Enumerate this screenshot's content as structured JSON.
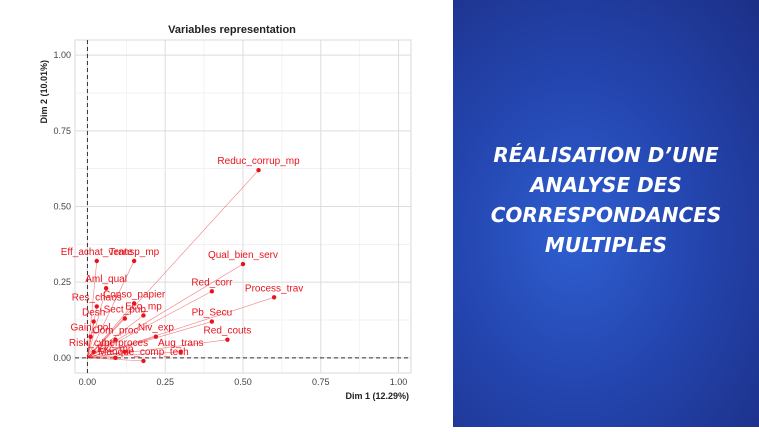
{
  "chart_data": {
    "type": "scatter",
    "title": "Variables representation",
    "xlabel": "Dim 1 (12.29%)",
    "ylabel": "Dim 2 (10.01%)",
    "xlim": [
      -0.04,
      1.04
    ],
    "ylim": [
      -0.05,
      1.05
    ],
    "x_ticks": [
      "0.00",
      "0.25",
      "0.50",
      "0.75",
      "1.00"
    ],
    "y_ticks": [
      "0.00",
      "0.25",
      "0.50",
      "0.75",
      "1.00"
    ],
    "grid": true,
    "reference_lines": "dashed lines at x=0 and y=0",
    "point_color": "#e8141c",
    "points": [
      {
        "label": "Reduc_corrup_mp",
        "x": 0.55,
        "y": 0.62
      },
      {
        "label": "Eff_achat_vente",
        "x": 0.03,
        "y": 0.32
      },
      {
        "label": "Transp_mp",
        "x": 0.15,
        "y": 0.32
      },
      {
        "label": "Qual_bien_serv",
        "x": 0.5,
        "y": 0.31
      },
      {
        "label": "Aml_qual",
        "x": 0.06,
        "y": 0.23
      },
      {
        "label": "Red_corr",
        "x": 0.4,
        "y": 0.22
      },
      {
        "label": "Res_chaos",
        "x": 0.03,
        "y": 0.17
      },
      {
        "label": "Conso_papier",
        "x": 0.15,
        "y": 0.18
      },
      {
        "label": "Process_trav",
        "x": 0.6,
        "y": 0.2
      },
      {
        "label": "Eco_mp",
        "x": 0.18,
        "y": 0.14
      },
      {
        "label": "Desh",
        "x": 0.02,
        "y": 0.12
      },
      {
        "label": "Sect_pub",
        "x": 0.12,
        "y": 0.13
      },
      {
        "label": "Pb_Secu",
        "x": 0.4,
        "y": 0.12
      },
      {
        "label": "Niv_exp",
        "x": 0.22,
        "y": 0.07
      },
      {
        "label": "Gain_pol",
        "x": 0.01,
        "y": 0.07
      },
      {
        "label": "Com_proc",
        "x": 0.09,
        "y": 0.06
      },
      {
        "label": "Red_couts",
        "x": 0.45,
        "y": 0.06
      },
      {
        "label": "Risk_cyber",
        "x": 0.02,
        "y": 0.02
      },
      {
        "label": "Int_proces",
        "x": 0.12,
        "y": 0.02
      },
      {
        "label": "Aug_trans",
        "x": 0.3,
        "y": 0.02
      },
      {
        "label": "Exc_mp",
        "x": 0.09,
        "y": 0.0
      },
      {
        "label": "Manque_comp_tech",
        "x": 0.18,
        "y": -0.01
      }
    ]
  },
  "headline": [
    "Réalisation d’une",
    "analyse des",
    "correspondances",
    "multiples"
  ],
  "colors": {
    "panel_bg": "#2446b0",
    "headline_text": "#ffffff",
    "points": "#e8141c"
  }
}
